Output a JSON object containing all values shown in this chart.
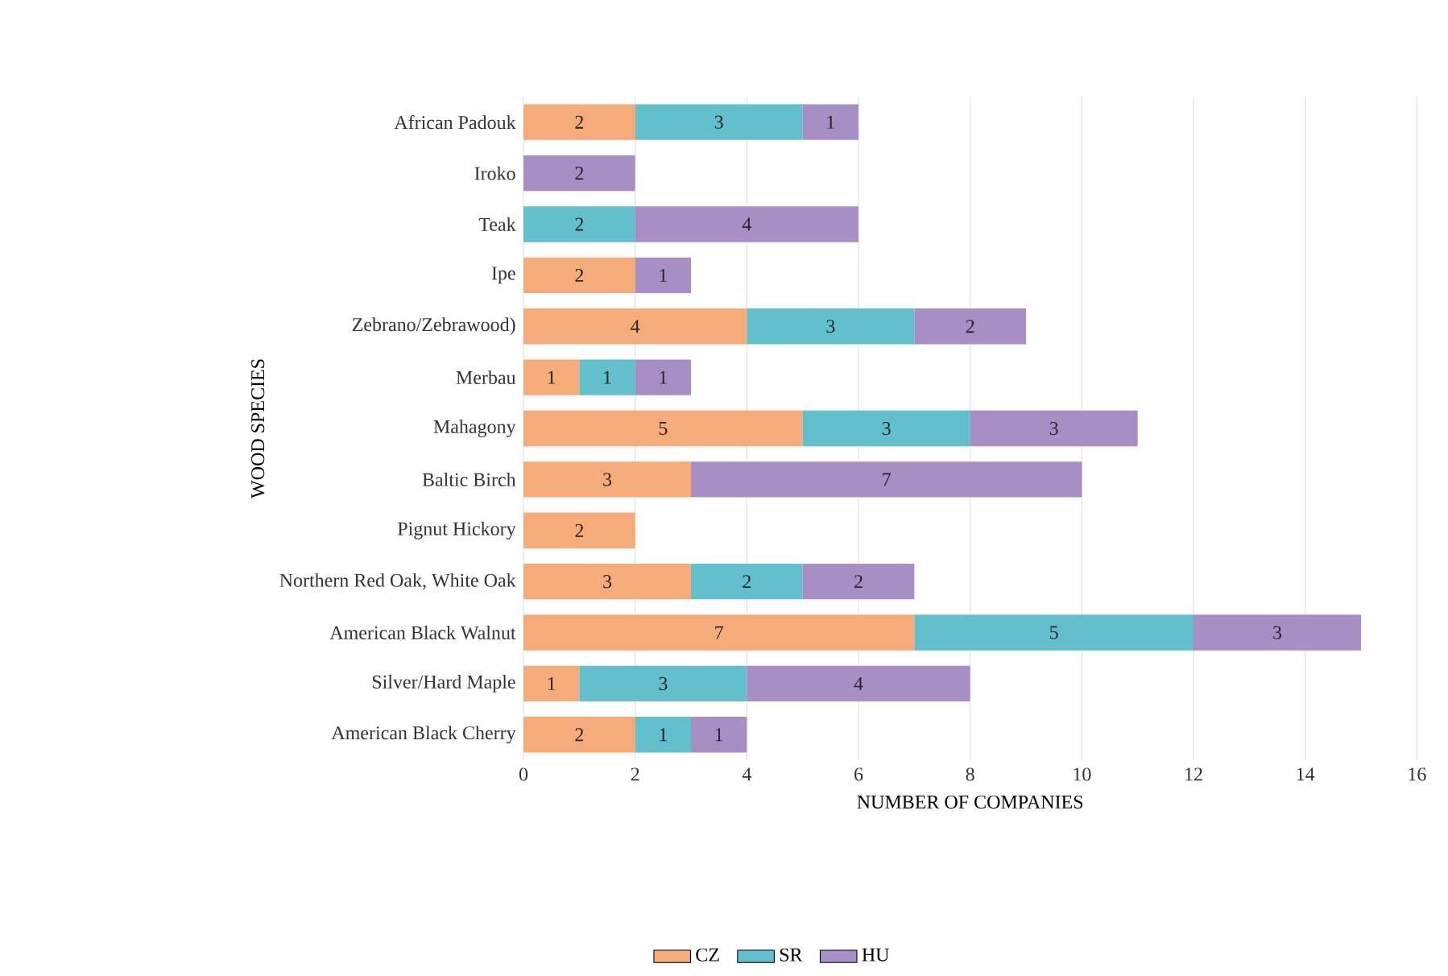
{
  "chart_data": {
    "type": "bar",
    "orientation": "horizontal",
    "stacked": true,
    "data_labels": true,
    "grid": "x",
    "legend": "bottom",
    "xlabel": "NUMBER OF COMPANIES",
    "ylabel": "WOOD SPECIES",
    "categories": [
      "African Padouk",
      "Iroko",
      "Teak",
      "Ipe",
      "Zebrano/Zebrawood)",
      "Merbau",
      "Mahagony",
      "Baltic Birch",
      "Pignut Hickory",
      "Northern Red Oak, White Oak",
      "American Black Walnut",
      "Silver/Hard Maple",
      "American Black Cherry"
    ],
    "xlim": [
      0,
      16
    ],
    "xticks": [
      0,
      2,
      4,
      6,
      8,
      10,
      12,
      14,
      16
    ],
    "series": [
      {
        "name": "CZ",
        "color": "#f6ac7a",
        "values": [
          2,
          null,
          null,
          2,
          4,
          1,
          5,
          3,
          2,
          3,
          7,
          1,
          2
        ]
      },
      {
        "name": "SR",
        "color": "#63bfcc",
        "values": [
          3,
          null,
          2,
          null,
          3,
          1,
          3,
          null,
          null,
          2,
          5,
          3,
          1
        ]
      },
      {
        "name": "HU",
        "color": "#a78fc6",
        "values": [
          1,
          2,
          4,
          1,
          2,
          1,
          3,
          7,
          null,
          2,
          3,
          4,
          1
        ]
      }
    ]
  }
}
